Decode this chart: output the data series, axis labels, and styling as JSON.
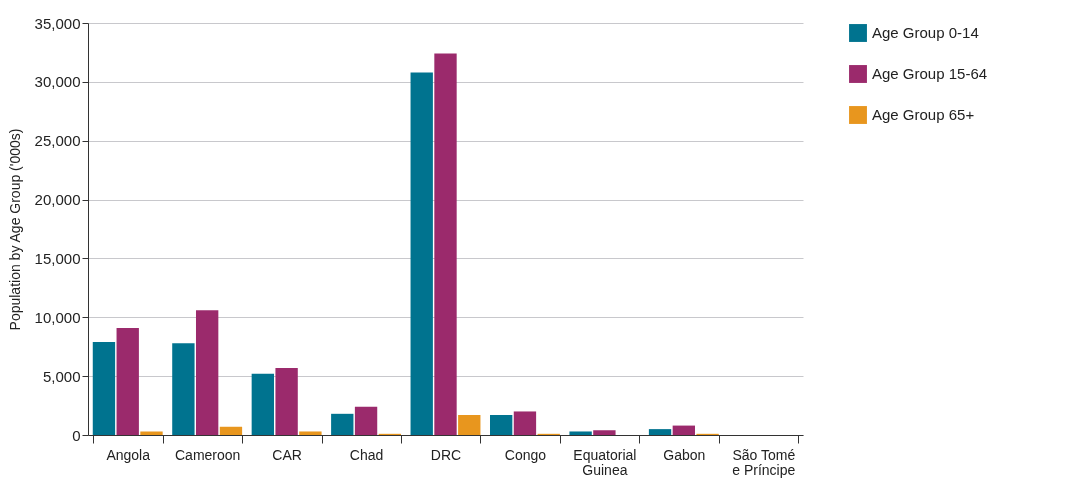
{
  "chart_data": {
    "type": "bar",
    "ylabel": "Population by Age Group ('000s)",
    "categories": [
      "Angola",
      "Cameroon",
      "CAR",
      "Chad",
      "DRC",
      "Congo",
      "Equatorial Guinea",
      "Gabon",
      "São Tomé e Príncipe"
    ],
    "series": [
      {
        "name": "Age Group 0-14",
        "color": "#00738f",
        "values": [
          7900,
          7800,
          5200,
          1800,
          30800,
          1700,
          300,
          500,
          0
        ]
      },
      {
        "name": "Age Group 15-64",
        "color": "#9b2a6c",
        "values": [
          9100,
          10600,
          5700,
          2400,
          32400,
          2000,
          400,
          800,
          0
        ]
      },
      {
        "name": "Age Group 65+",
        "color": "#e8961e",
        "values": [
          300,
          700,
          300,
          100,
          1700,
          100,
          0,
          100,
          0
        ]
      }
    ],
    "ylim": [
      0,
      35000
    ],
    "yticks": [
      0,
      {
        "value": 5000,
        "label": "5,000"
      },
      {
        "value": 10000,
        "label": "10,000"
      },
      {
        "value": 15000,
        "label": "15,000"
      },
      {
        "value": 20000,
        "label": "20,000"
      },
      {
        "value": 25000,
        "label": "25,000"
      },
      {
        "value": 30000,
        "label": "30,000"
      },
      {
        "value": 35000,
        "label": "35,000"
      }
    ],
    "grid": "y",
    "legend": "right"
  }
}
